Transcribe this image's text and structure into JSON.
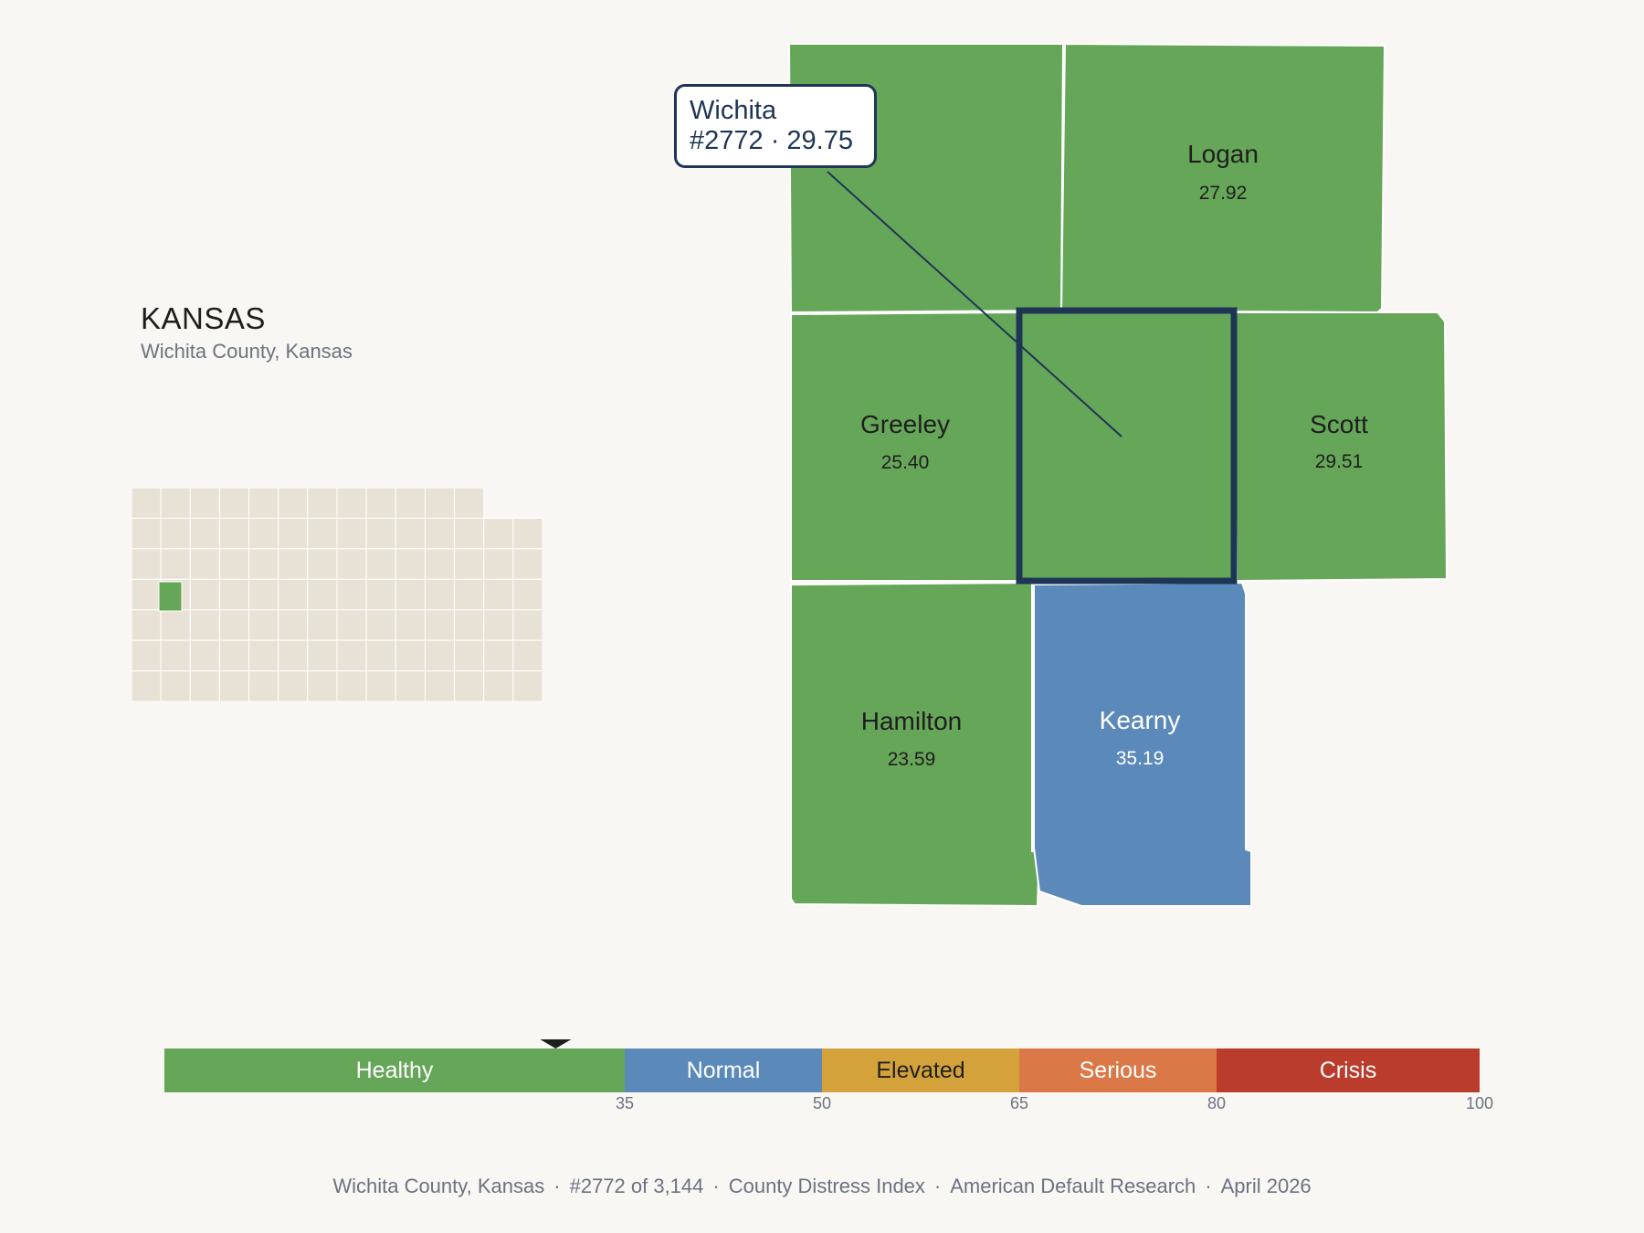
{
  "header": {
    "state_name": "KANSAS",
    "subtitle": "Wichita County, Kansas"
  },
  "map": {
    "highlight_color": "#1e3556",
    "counties": [
      {
        "id": "wichita",
        "name": "Wichita",
        "value": "29.75",
        "color": "#66a659",
        "selected": true
      },
      {
        "id": "logan",
        "name": "Logan",
        "value": "27.92",
        "color": "#66a659"
      },
      {
        "id": "greeley",
        "name": "Greeley",
        "value": "25.40",
        "color": "#66a659"
      },
      {
        "id": "scott",
        "name": "Scott",
        "value": "29.51",
        "color": "#66a659"
      },
      {
        "id": "hamilton",
        "name": "Hamilton",
        "value": "23.59",
        "color": "#66a659"
      },
      {
        "id": "kearny",
        "name": "Kearny",
        "value": "35.19",
        "color": "#5b8aba"
      }
    ],
    "callout": {
      "line1": "Wichita",
      "line2": "#2772 · 29.75"
    }
  },
  "locator": {
    "base_color": "#e8e2d6",
    "highlight_color": "#66a659"
  },
  "scale": {
    "marker_value": 29.75,
    "min": 0,
    "max": 100,
    "bands": [
      {
        "label": "Healthy",
        "from": 0,
        "to": 35,
        "color": "#66a659",
        "text_color": "#ffffff"
      },
      {
        "label": "Normal",
        "from": 35,
        "to": 50,
        "color": "#5b8aba",
        "text_color": "#ffffff"
      },
      {
        "label": "Elevated",
        "from": 50,
        "to": 65,
        "color": "#d4a23a",
        "text_color": "#1e1e1e"
      },
      {
        "label": "Serious",
        "from": 65,
        "to": 80,
        "color": "#db7848",
        "text_color": "#ffffff"
      },
      {
        "label": "Crisis",
        "from": 80,
        "to": 100,
        "color": "#b93c2c",
        "text_color": "#ffffff"
      }
    ],
    "ticks": [
      "35",
      "50",
      "65",
      "80",
      "100"
    ]
  },
  "footer": {
    "items": [
      "Wichita County, Kansas",
      "#2772 of 3,144",
      "County Distress Index",
      "American Default Research",
      "April 2026"
    ],
    "separator": "·"
  }
}
